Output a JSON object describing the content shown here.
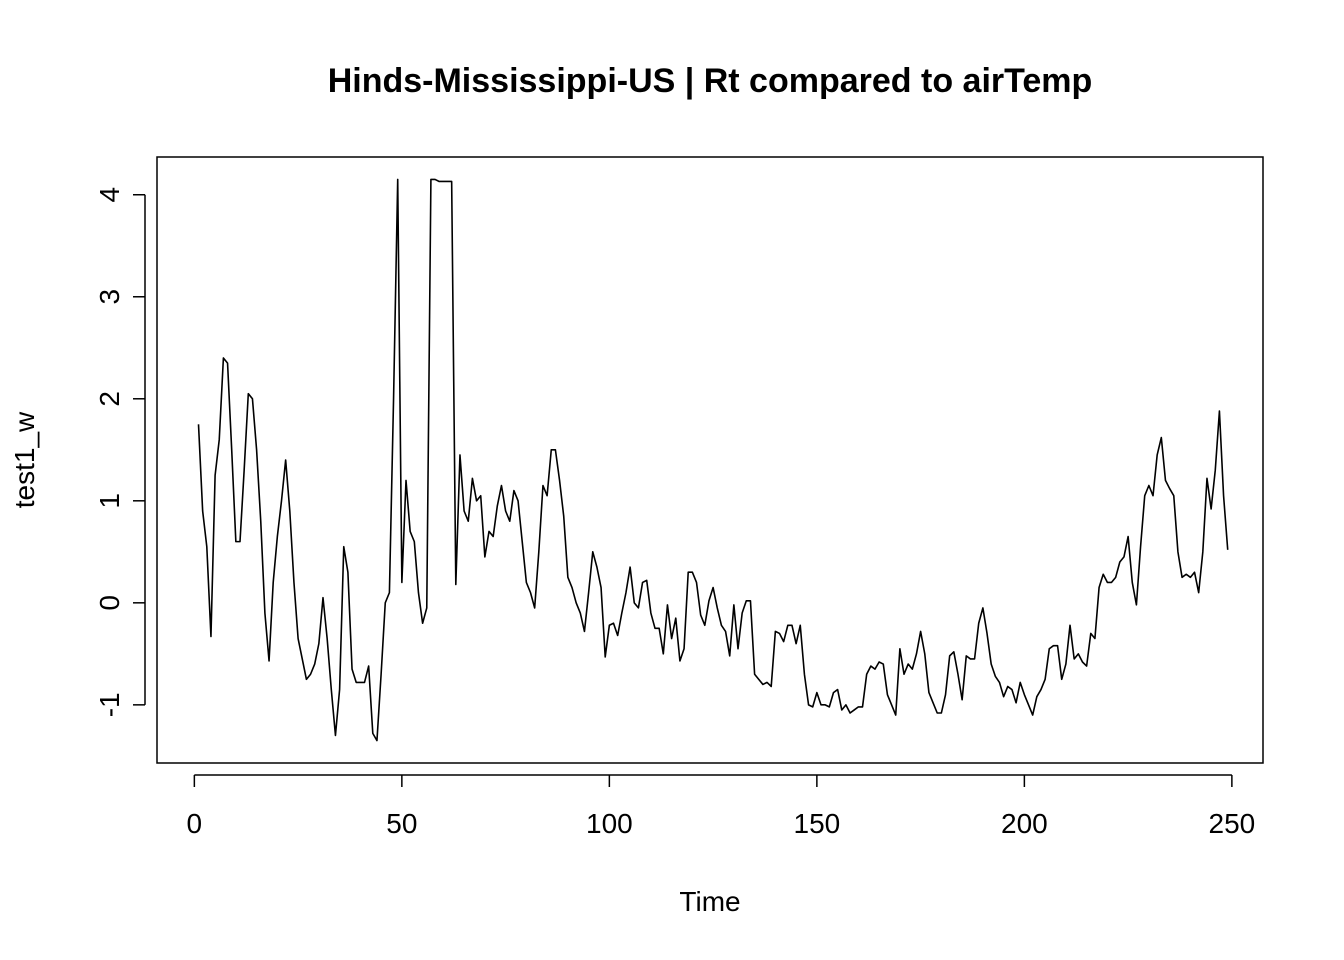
{
  "chart_data": {
    "type": "line",
    "title": "Hinds-Mississippi-US | Rt compared to airTemp",
    "xlabel": "Time",
    "ylabel": "test1_w",
    "xlim": [
      -9,
      257.5
    ],
    "ylim": [
      -1.57,
      4.37
    ],
    "x_ticks": [
      0,
      50,
      100,
      150,
      200,
      250
    ],
    "y_ticks": [
      -1,
      0,
      1,
      2,
      3,
      4
    ],
    "x_tick_labels": [
      "0",
      "50",
      "100",
      "150",
      "200",
      "250"
    ],
    "y_tick_labels": [
      "-1",
      "0",
      "1",
      "2",
      "3",
      "4"
    ],
    "grid": false,
    "x_start": 1,
    "series": [
      {
        "color": "#000000",
        "values": [
          1.75,
          0.9,
          0.55,
          -0.33,
          1.25,
          1.6,
          2.4,
          2.35,
          1.5,
          0.6,
          0.6,
          1.3,
          2.05,
          2.0,
          1.5,
          0.8,
          -0.1,
          -0.57,
          0.2,
          0.65,
          1.0,
          1.4,
          0.9,
          0.2,
          -0.35,
          -0.55,
          -0.75,
          -0.7,
          -0.6,
          -0.4,
          0.05,
          -0.35,
          -0.85,
          -1.3,
          -0.85,
          0.55,
          0.3,
          -0.65,
          -0.78,
          -0.78,
          -0.78,
          -0.62,
          -1.28,
          -1.35,
          -0.7,
          0.0,
          0.1,
          2.0,
          4.15,
          0.2,
          1.2,
          0.7,
          0.6,
          0.1,
          -0.2,
          -0.05,
          4.15,
          4.15,
          4.13,
          4.13,
          4.13,
          4.13,
          0.18,
          1.45,
          0.9,
          0.8,
          1.22,
          1.0,
          1.05,
          0.45,
          0.7,
          0.65,
          0.95,
          1.15,
          0.9,
          0.8,
          1.1,
          1.0,
          0.6,
          0.2,
          0.1,
          -0.05,
          0.5,
          1.15,
          1.05,
          1.5,
          1.5,
          1.2,
          0.85,
          0.25,
          0.15,
          0.0,
          -0.1,
          -0.28,
          0.1,
          0.5,
          0.35,
          0.15,
          -0.53,
          -0.22,
          -0.2,
          -0.32,
          -0.1,
          0.1,
          0.35,
          0.0,
          -0.05,
          0.2,
          0.22,
          -0.1,
          -0.25,
          -0.25,
          -0.5,
          -0.02,
          -0.35,
          -0.15,
          -0.57,
          -0.45,
          0.3,
          0.3,
          0.2,
          -0.12,
          -0.22,
          0.02,
          0.15,
          -0.05,
          -0.22,
          -0.28,
          -0.52,
          -0.02,
          -0.45,
          -0.1,
          0.02,
          0.02,
          -0.7,
          -0.75,
          -0.8,
          -0.78,
          -0.82,
          -0.28,
          -0.3,
          -0.38,
          -0.22,
          -0.22,
          -0.4,
          -0.22,
          -0.7,
          -1.0,
          -1.02,
          -0.88,
          -1.0,
          -1.0,
          -1.02,
          -0.88,
          -0.85,
          -1.05,
          -1.0,
          -1.08,
          -1.05,
          -1.02,
          -1.02,
          -0.7,
          -0.62,
          -0.65,
          -0.58,
          -0.6,
          -0.9,
          -1.0,
          -1.1,
          -0.45,
          -0.7,
          -0.6,
          -0.65,
          -0.5,
          -0.28,
          -0.5,
          -0.88,
          -0.98,
          -1.08,
          -1.08,
          -0.9,
          -0.52,
          -0.48,
          -0.7,
          -0.95,
          -0.52,
          -0.55,
          -0.55,
          -0.2,
          -0.05,
          -0.3,
          -0.6,
          -0.72,
          -0.78,
          -0.92,
          -0.82,
          -0.85,
          -0.98,
          -0.78,
          -0.9,
          -1.0,
          -1.1,
          -0.92,
          -0.85,
          -0.75,
          -0.45,
          -0.42,
          -0.42,
          -0.75,
          -0.6,
          -0.22,
          -0.55,
          -0.5,
          -0.58,
          -0.62,
          -0.3,
          -0.35,
          0.15,
          0.28,
          0.2,
          0.2,
          0.25,
          0.4,
          0.45,
          0.65,
          0.2,
          -0.02,
          0.55,
          1.05,
          1.15,
          1.05,
          1.45,
          1.62,
          1.2,
          1.12,
          1.05,
          0.5,
          0.25,
          0.28,
          0.25,
          0.3,
          0.1,
          0.5,
          1.22,
          0.92,
          1.3,
          1.88,
          1.05,
          0.52
        ]
      }
    ]
  }
}
